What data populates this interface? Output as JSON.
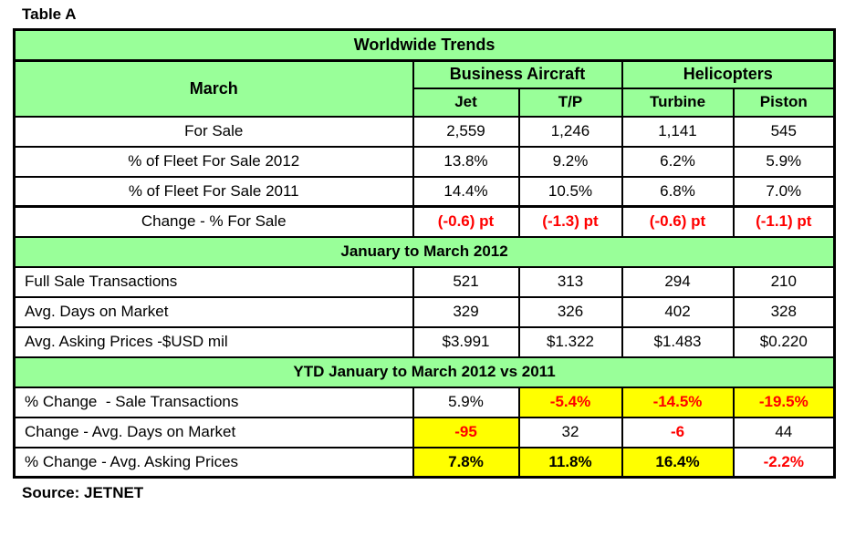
{
  "title": "Table A",
  "source": "Source: JETNET",
  "colors": {
    "section_green": "#99FF99",
    "highlight_yellow": "#FFFF00",
    "negative_red": "#FF0000",
    "border_black": "#000000"
  },
  "chart_data": {
    "type": "table",
    "title": "Worldwide Trends",
    "column_groups": [
      {
        "name": "Business Aircraft",
        "columns": [
          "Jet",
          "T/P"
        ]
      },
      {
        "name": "Helicopters",
        "columns": [
          "Turbine",
          "Piston"
        ]
      }
    ],
    "columns": [
      "Jet",
      "T/P",
      "Turbine",
      "Piston"
    ],
    "sections": [
      {
        "header": "March",
        "label_align": "center",
        "rows": [
          {
            "label": "For Sale",
            "values": [
              "2,559",
              "1,246",
              "1,141",
              "545"
            ],
            "styles": [
              "",
              "",
              "",
              ""
            ]
          },
          {
            "label": "% of Fleet For Sale 2012",
            "values": [
              "13.8%",
              "9.2%",
              "6.2%",
              "5.9%"
            ],
            "styles": [
              "",
              "",
              "",
              ""
            ]
          },
          {
            "label": "% of Fleet For Sale 2011",
            "values": [
              "14.4%",
              "10.5%",
              "6.8%",
              "7.0%"
            ],
            "styles": [
              "",
              "",
              "",
              ""
            ]
          },
          {
            "label": "Change - % For Sale",
            "values": [
              "(-0.6) pt",
              "(-1.3) pt",
              "(-0.6) pt",
              "(-1.1) pt"
            ],
            "styles": [
              "red",
              "red",
              "red",
              "red"
            ]
          }
        ]
      },
      {
        "header": "January to March 2012",
        "label_align": "left",
        "rows": [
          {
            "label": "Full Sale Transactions",
            "values": [
              "521",
              "313",
              "294",
              "210"
            ],
            "styles": [
              "",
              "",
              "",
              ""
            ]
          },
          {
            "label": "Avg. Days on Market",
            "values": [
              "329",
              "326",
              "402",
              "328"
            ],
            "styles": [
              "",
              "",
              "",
              ""
            ]
          },
          {
            "label": "Avg. Asking Prices -$USD mil",
            "values": [
              "$3.991",
              "$1.322",
              "$1.483",
              "$0.220"
            ],
            "styles": [
              "",
              "",
              "",
              ""
            ]
          }
        ]
      },
      {
        "header": "YTD January to March 2012 vs 2011",
        "label_align": "left",
        "rows": [
          {
            "label": "% Change  - Sale Transactions",
            "values": [
              "5.9%",
              "-5.4%",
              "-14.5%",
              "-19.5%"
            ],
            "styles": [
              "",
              "red yellow",
              "red yellow",
              "red yellow"
            ]
          },
          {
            "label": "Change - Avg. Days on Market",
            "values": [
              "-95",
              "32",
              "-6",
              "44"
            ],
            "styles": [
              "red yellow",
              "",
              "red",
              ""
            ]
          },
          {
            "label": "% Change - Avg. Asking Prices",
            "values": [
              "7.8%",
              "11.8%",
              "16.4%",
              "-2.2%"
            ],
            "styles": [
              "bold yellow",
              "bold yellow",
              "bold yellow",
              "red"
            ]
          }
        ]
      }
    ]
  }
}
